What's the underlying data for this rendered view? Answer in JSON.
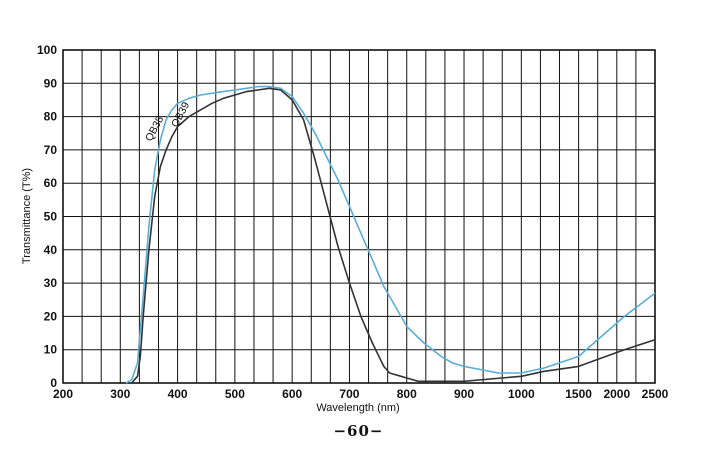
{
  "page": {
    "page_number": "−60−"
  },
  "chart_data": {
    "type": "line",
    "xlabel": "Wavelength (nm)",
    "ylabel": "Transmittance (T%)",
    "x_scale": "nonlinear: 200–800 nm at linear spacing, 800–2500 nm compressed",
    "x_ticks": [
      200,
      300,
      400,
      500,
      600,
      700,
      800,
      900,
      1000,
      1500,
      2000,
      2500
    ],
    "x_tick_labels": [
      "200",
      "300",
      "400",
      "500",
      "600",
      "700",
      "800",
      "900",
      "1000",
      "1500",
      "2000",
      "2500"
    ],
    "xlim": [
      200,
      2500
    ],
    "ylim": [
      0,
      100
    ],
    "y_ticks": [
      0,
      10,
      20,
      30,
      40,
      50,
      60,
      70,
      80,
      90,
      100
    ],
    "y_tick_labels": [
      "0",
      "10",
      "20",
      "30",
      "40",
      "50",
      "60",
      "70",
      "80",
      "90",
      "100"
    ],
    "grid": true,
    "series": [
      {
        "name": "QB38",
        "color": "#5aaed6",
        "points": [
          [
            310,
            0
          ],
          [
            320,
            1
          ],
          [
            330,
            6
          ],
          [
            340,
            26
          ],
          [
            350,
            47
          ],
          [
            360,
            64
          ],
          [
            370,
            73
          ],
          [
            380,
            79
          ],
          [
            390,
            82
          ],
          [
            400,
            84
          ],
          [
            420,
            85.5
          ],
          [
            440,
            86.5
          ],
          [
            460,
            87
          ],
          [
            480,
            87.5
          ],
          [
            500,
            88
          ],
          [
            520,
            88.5
          ],
          [
            540,
            89
          ],
          [
            560,
            89
          ],
          [
            580,
            88.5
          ],
          [
            600,
            86
          ],
          [
            620,
            81
          ],
          [
            640,
            75
          ],
          [
            660,
            68
          ],
          [
            680,
            61
          ],
          [
            700,
            53
          ],
          [
            720,
            45
          ],
          [
            740,
            37
          ],
          [
            760,
            29
          ],
          [
            780,
            23
          ],
          [
            800,
            17
          ],
          [
            830,
            12
          ],
          [
            860,
            8
          ],
          [
            880,
            6
          ],
          [
            900,
            5
          ],
          [
            930,
            4
          ],
          [
            960,
            3
          ],
          [
            1000,
            3
          ],
          [
            1200,
            4.5
          ],
          [
            1500,
            8
          ],
          [
            1800,
            14
          ],
          [
            2100,
            20
          ],
          [
            2500,
            27
          ]
        ]
      },
      {
        "name": "QB39",
        "color": "#333333",
        "points": [
          [
            320,
            0
          ],
          [
            330,
            2
          ],
          [
            335,
            8
          ],
          [
            340,
            20
          ],
          [
            350,
            40
          ],
          [
            360,
            56
          ],
          [
            370,
            65
          ],
          [
            380,
            70
          ],
          [
            390,
            74
          ],
          [
            400,
            77
          ],
          [
            420,
            80
          ],
          [
            440,
            82
          ],
          [
            460,
            84
          ],
          [
            480,
            85.5
          ],
          [
            500,
            86.5
          ],
          [
            520,
            87.5
          ],
          [
            540,
            88
          ],
          [
            560,
            88.5
          ],
          [
            580,
            88
          ],
          [
            600,
            85
          ],
          [
            620,
            79
          ],
          [
            640,
            67
          ],
          [
            660,
            54
          ],
          [
            680,
            41
          ],
          [
            700,
            30
          ],
          [
            720,
            20
          ],
          [
            740,
            12
          ],
          [
            760,
            5
          ],
          [
            770,
            3
          ],
          [
            790,
            2
          ],
          [
            800,
            1.5
          ],
          [
            820,
            0.5
          ],
          [
            900,
            0.5
          ],
          [
            1000,
            2
          ],
          [
            1200,
            3.5
          ],
          [
            1500,
            5
          ],
          [
            1800,
            7.5
          ],
          [
            2100,
            10
          ],
          [
            2500,
            13
          ]
        ]
      }
    ]
  }
}
